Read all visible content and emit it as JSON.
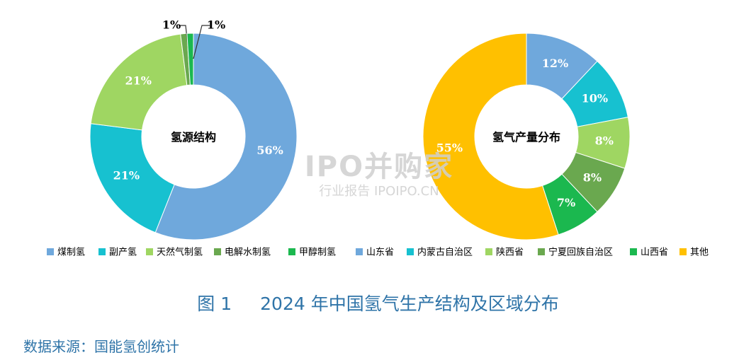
{
  "chart_data": [
    {
      "type": "pie",
      "center_label": "氢源结构",
      "slices": [
        {
          "name": "煤制氢",
          "value": 56,
          "label": "56%",
          "color": "#6fa8dc"
        },
        {
          "name": "副产氢",
          "value": 21,
          "label": "21%",
          "color": "#17c1d0"
        },
        {
          "name": "天然气制氢",
          "value": 21,
          "label": "21%",
          "color": "#9fd662"
        },
        {
          "name": "电解水制氢",
          "value": 1,
          "label": "1%",
          "color": "#6aa84f"
        },
        {
          "name": "甲醇制氢",
          "value": 1,
          "label": "1%",
          "color": "#1bb84f"
        }
      ]
    },
    {
      "type": "pie",
      "center_label": "氢气产量分布",
      "slices": [
        {
          "name": "山东省",
          "value": 12,
          "label": "12%",
          "color": "#6fa8dc"
        },
        {
          "name": "内蒙古自治区",
          "value": 10,
          "label": "10%",
          "color": "#17c1d0"
        },
        {
          "name": "陕西省",
          "value": 8,
          "label": "8%",
          "color": "#9fd662"
        },
        {
          "name": "宁夏回族自治区",
          "value": 8,
          "label": "8%",
          "color": "#6aa84f"
        },
        {
          "name": "山西省",
          "value": 7,
          "label": "7%",
          "color": "#1bb84f"
        },
        {
          "name": "其他",
          "value": 55,
          "label": "55%",
          "color": "#ffc000"
        }
      ]
    }
  ],
  "watermark": {
    "main": "IPO并购家",
    "sub": "行业报告 IPOIPO.CN"
  },
  "caption": {
    "figure": "图 1",
    "title": "2024 年中国氢气生产结构及区域分布"
  },
  "source": "数据来源：国能氢创统计"
}
